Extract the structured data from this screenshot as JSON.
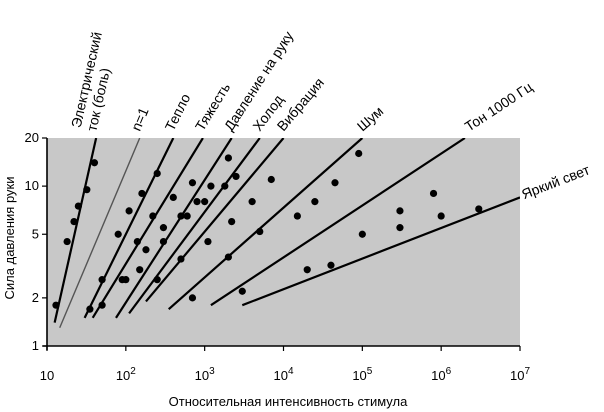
{
  "chart_data": {
    "type": "scatter",
    "xlabel": "Относительная интенсивность стимула",
    "ylabel": "Сила давления руки",
    "xscale": "log",
    "yscale": "log",
    "xlim": [
      10,
      10000000
    ],
    "ylim": [
      1,
      20
    ],
    "x_ticks": [
      {
        "value": 10,
        "base": "10",
        "exp": ""
      },
      {
        "value": 100,
        "base": "10",
        "exp": "2"
      },
      {
        "value": 1000,
        "base": "10",
        "exp": "3"
      },
      {
        "value": 10000,
        "base": "10",
        "exp": "4"
      },
      {
        "value": 100000,
        "base": "10",
        "exp": "5"
      },
      {
        "value": 1000000,
        "base": "10",
        "exp": "6"
      },
      {
        "value": 10000000,
        "base": "10",
        "exp": "7"
      }
    ],
    "y_ticks": [
      {
        "value": 1,
        "label": "1"
      },
      {
        "value": 2,
        "label": "2"
      },
      {
        "value": 5,
        "label": "5"
      },
      {
        "value": 10,
        "label": "10"
      },
      {
        "value": 20,
        "label": "20"
      }
    ],
    "background_color": "#c8c8c8",
    "series": [
      {
        "name": "Электрический ток (боль)",
        "label_lines": [
          "Электрический",
          "ток (боль)"
        ],
        "line": [
          [
            12.5,
            1.4
          ],
          [
            42,
            20
          ]
        ],
        "points": [
          [
            13,
            1.8
          ],
          [
            18,
            4.5
          ],
          [
            22,
            6
          ],
          [
            25,
            7.5
          ],
          [
            32,
            9.5
          ],
          [
            40,
            14
          ]
        ]
      },
      {
        "name": "n=1",
        "label_lines": [
          "n=1"
        ],
        "reference": true,
        "line": [
          [
            14.5,
            1.3
          ],
          [
            150,
            20
          ]
        ],
        "points": []
      },
      {
        "name": "Тепло",
        "label_lines": [
          "Тепло"
        ],
        "line": [
          [
            30,
            1.5
          ],
          [
            400,
            20
          ]
        ],
        "points": [
          [
            35,
            1.7
          ],
          [
            50,
            2.6
          ],
          [
            80,
            5
          ],
          [
            110,
            7
          ],
          [
            160,
            9
          ],
          [
            250,
            12
          ]
        ]
      },
      {
        "name": "Тяжесть",
        "label_lines": [
          "Тяжесть"
        ],
        "line": [
          [
            38,
            1.5
          ],
          [
            950,
            20
          ]
        ],
        "points": [
          [
            50,
            1.8
          ],
          [
            90,
            2.6
          ],
          [
            140,
            4.5
          ],
          [
            220,
            6.5
          ],
          [
            400,
            8.5
          ],
          [
            700,
            10.5
          ]
        ]
      },
      {
        "name": "Давление на руку",
        "label_lines": [
          "Давление на руку"
        ],
        "line": [
          [
            75,
            1.5
          ],
          [
            2200,
            20
          ]
        ],
        "points": [
          [
            100,
            2.6
          ],
          [
            180,
            4
          ],
          [
            300,
            5.5
          ],
          [
            500,
            6.5
          ],
          [
            800,
            8
          ],
          [
            1200,
            10
          ],
          [
            2000,
            15
          ]
        ]
      },
      {
        "name": "Холод",
        "label_lines": [
          "Холод"
        ],
        "line": [
          [
            110,
            1.6
          ],
          [
            5000,
            20
          ]
        ],
        "points": [
          [
            150,
            3
          ],
          [
            300,
            4.5
          ],
          [
            600,
            6.5
          ],
          [
            1000,
            8
          ],
          [
            1800,
            10
          ],
          [
            2500,
            11.5
          ]
        ]
      },
      {
        "name": "Вибрация",
        "label_lines": [
          "Вибрация"
        ],
        "line": [
          [
            180,
            1.9
          ],
          [
            10000,
            20
          ]
        ],
        "points": [
          [
            250,
            2.6
          ],
          [
            500,
            3.5
          ],
          [
            1100,
            4.5
          ],
          [
            2200,
            6
          ],
          [
            4000,
            8
          ],
          [
            7000,
            11
          ]
        ]
      },
      {
        "name": "Шум",
        "label_lines": [
          "Шум"
        ],
        "line": [
          [
            350,
            1.7
          ],
          [
            100000,
            20
          ]
        ],
        "points": [
          [
            700,
            2
          ],
          [
            2000,
            3.6
          ],
          [
            5000,
            5.2
          ],
          [
            15000,
            6.5
          ],
          [
            25000,
            8
          ],
          [
            45000,
            10.5
          ],
          [
            90000,
            16
          ]
        ]
      },
      {
        "name": "Тон 1000 Гц",
        "label_lines": [
          "Тон 1000 Гц"
        ],
        "line": [
          [
            1200,
            1.8
          ],
          [
            2000000,
            20
          ]
        ],
        "points": [
          [
            3000,
            2.2
          ],
          [
            20000,
            3
          ],
          [
            100000,
            5
          ],
          [
            300000,
            7
          ],
          [
            800000,
            9
          ]
        ]
      },
      {
        "name": "Яркий свет",
        "label_lines": [
          "Яркий свет"
        ],
        "line": [
          [
            3000,
            1.8
          ],
          [
            10000000,
            8.5
          ]
        ],
        "points": [
          [
            40000,
            3.2
          ],
          [
            300000,
            5.5
          ],
          [
            1000000,
            6.5
          ],
          [
            3000000,
            7.2
          ]
        ]
      }
    ]
  }
}
